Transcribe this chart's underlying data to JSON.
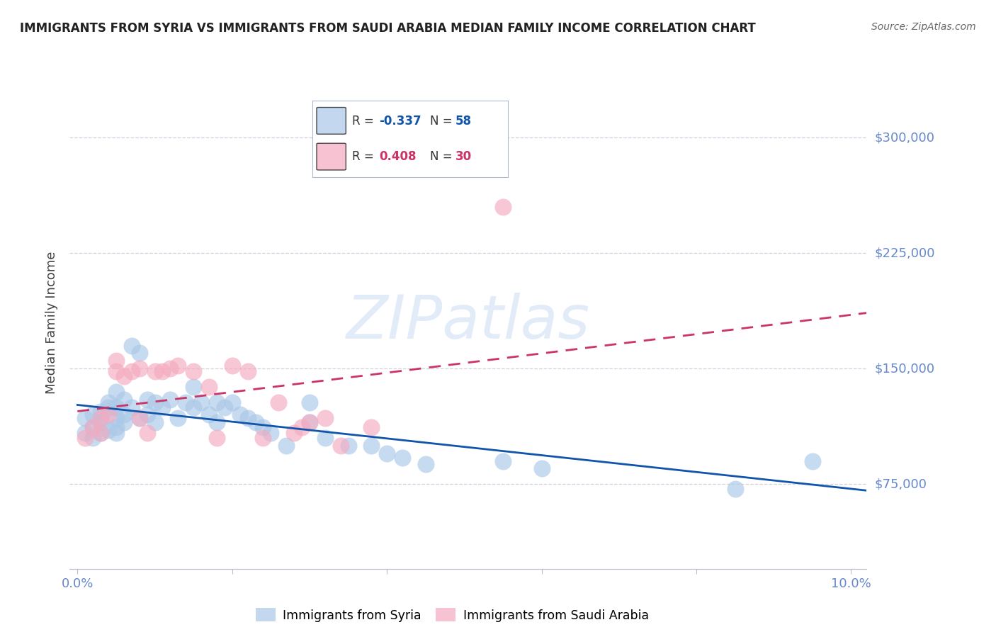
{
  "title": "IMMIGRANTS FROM SYRIA VS IMMIGRANTS FROM SAUDI ARABIA MEDIAN FAMILY INCOME CORRELATION CHART",
  "source": "Source: ZipAtlas.com",
  "ylabel": "Median Family Income",
  "xlim": [
    -0.001,
    0.102
  ],
  "ylim": [
    20000,
    340000
  ],
  "yticks": [
    75000,
    150000,
    225000,
    300000
  ],
  "ytick_labels": [
    "$75,000",
    "$150,000",
    "$225,000",
    "$300,000"
  ],
  "xticks": [
    0.0,
    0.02,
    0.04,
    0.06,
    0.08,
    0.1
  ],
  "xtick_labels": [
    "0.0%",
    "",
    "",
    "",
    "",
    "10.0%"
  ],
  "watermark": "ZIPatlas",
  "syria_color": "#aac8e8",
  "saudi_color": "#f4aabf",
  "syria_line_color": "#1155aa",
  "saudi_line_color": "#cc3366",
  "background_color": "#ffffff",
  "grid_color": "#d0d0e0",
  "axis_color": "#6688cc",
  "title_color": "#222222",
  "syria_R": -0.337,
  "syria_N": 58,
  "saudi_R": 0.408,
  "saudi_N": 30,
  "syria_scatter_x": [
    0.001,
    0.001,
    0.002,
    0.002,
    0.002,
    0.003,
    0.003,
    0.003,
    0.003,
    0.004,
    0.004,
    0.004,
    0.005,
    0.005,
    0.005,
    0.005,
    0.005,
    0.006,
    0.006,
    0.006,
    0.007,
    0.007,
    0.008,
    0.008,
    0.009,
    0.009,
    0.01,
    0.01,
    0.011,
    0.012,
    0.013,
    0.014,
    0.015,
    0.015,
    0.016,
    0.017,
    0.018,
    0.018,
    0.019,
    0.02,
    0.021,
    0.022,
    0.023,
    0.024,
    0.025,
    0.027,
    0.03,
    0.03,
    0.032,
    0.035,
    0.038,
    0.04,
    0.042,
    0.045,
    0.055,
    0.06,
    0.085,
    0.095
  ],
  "syria_scatter_y": [
    108000,
    118000,
    105000,
    112000,
    120000,
    115000,
    118000,
    122000,
    108000,
    125000,
    128000,
    110000,
    135000,
    125000,
    118000,
    112000,
    108000,
    130000,
    120000,
    115000,
    165000,
    125000,
    160000,
    118000,
    130000,
    120000,
    128000,
    115000,
    125000,
    130000,
    118000,
    128000,
    138000,
    125000,
    128000,
    120000,
    128000,
    115000,
    125000,
    128000,
    120000,
    118000,
    115000,
    112000,
    108000,
    100000,
    128000,
    115000,
    105000,
    100000,
    100000,
    95000,
    92000,
    88000,
    90000,
    85000,
    72000,
    90000
  ],
  "saudi_scatter_x": [
    0.001,
    0.002,
    0.003,
    0.003,
    0.004,
    0.005,
    0.005,
    0.006,
    0.007,
    0.008,
    0.008,
    0.009,
    0.01,
    0.011,
    0.012,
    0.013,
    0.015,
    0.017,
    0.018,
    0.02,
    0.022,
    0.024,
    0.026,
    0.028,
    0.029,
    0.03,
    0.032,
    0.034,
    0.038,
    0.055
  ],
  "saudi_scatter_y": [
    105000,
    112000,
    108000,
    118000,
    120000,
    148000,
    155000,
    145000,
    148000,
    150000,
    118000,
    108000,
    148000,
    148000,
    150000,
    152000,
    148000,
    138000,
    105000,
    152000,
    148000,
    105000,
    128000,
    108000,
    112000,
    115000,
    118000,
    100000,
    112000,
    255000
  ]
}
